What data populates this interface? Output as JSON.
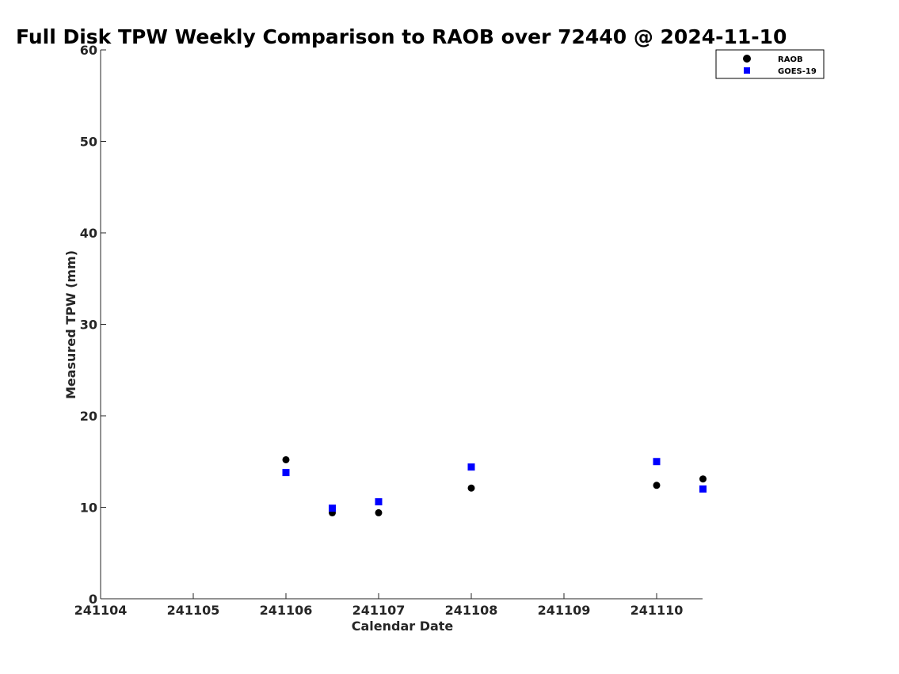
{
  "chart_data": {
    "type": "scatter",
    "title": "Full Disk TPW Weekly Comparison to RAOB over 72440 @ 2024-11-10",
    "xlabel": "Calendar Date",
    "ylabel": "Measured TPW (mm)",
    "x_tick_labels": [
      "241104",
      "241105",
      "241106",
      "241107",
      "241108",
      "241109",
      "241110"
    ],
    "y_tick_labels": [
      "0",
      "10",
      "20",
      "30",
      "40",
      "50",
      "60"
    ],
    "xlim": [
      0,
      6.5
    ],
    "ylim": [
      0,
      60
    ],
    "grid": false,
    "legend_position": "top-right",
    "series": [
      {
        "name": "RAOB",
        "marker": "circle",
        "color": "#000000",
        "points": [
          {
            "x": 2.0,
            "y": 15.2
          },
          {
            "x": 2.5,
            "y": 9.4
          },
          {
            "x": 3.0,
            "y": 9.4
          },
          {
            "x": 4.0,
            "y": 12.1
          },
          {
            "x": 6.0,
            "y": 12.4
          },
          {
            "x": 6.5,
            "y": 13.1
          }
        ]
      },
      {
        "name": "GOES-19",
        "marker": "square",
        "color": "#0000ff",
        "points": [
          {
            "x": 2.0,
            "y": 13.8
          },
          {
            "x": 2.5,
            "y": 9.9
          },
          {
            "x": 3.0,
            "y": 10.6
          },
          {
            "x": 4.0,
            "y": 14.4
          },
          {
            "x": 6.0,
            "y": 15.0
          },
          {
            "x": 6.5,
            "y": 12.0
          }
        ]
      }
    ]
  }
}
